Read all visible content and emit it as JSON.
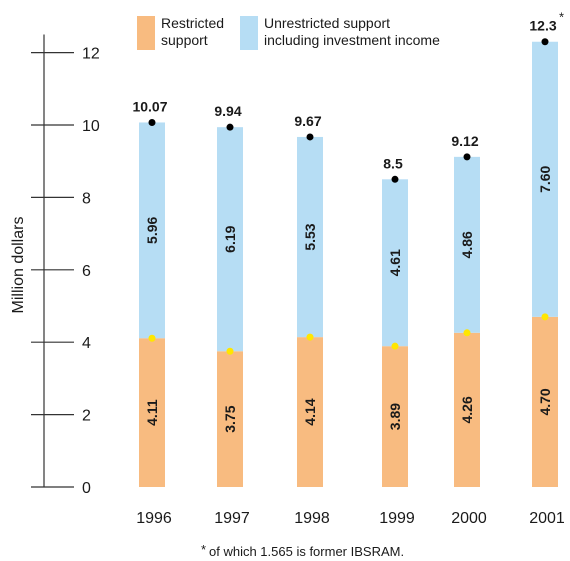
{
  "chart_data": {
    "type": "bar",
    "stacked": true,
    "categories": [
      "1996",
      "1997",
      "1998",
      "1999",
      "2000",
      "2001"
    ],
    "series": [
      {
        "name": "Restricted support",
        "color": "#f8bb80",
        "values": [
          4.11,
          3.75,
          4.14,
          3.89,
          4.26,
          4.7
        ],
        "labels": [
          "4.11",
          "3.75",
          "4.14",
          "3.89",
          "4.26",
          "4.70"
        ]
      },
      {
        "name": "Unrestricted support including investment income",
        "color": "#b6ddf4",
        "values": [
          5.96,
          6.19,
          5.53,
          4.61,
          4.86,
          7.6
        ],
        "labels": [
          "5.96",
          "6.19",
          "5.53",
          "4.61",
          "4.86",
          "7.60"
        ]
      }
    ],
    "totals": [
      10.07,
      9.94,
      9.67,
      8.5,
      9.12,
      12.3
    ],
    "total_labels": [
      "10.07",
      "9.94",
      "9.67",
      "8.5",
      "9.12",
      "12.3"
    ],
    "total_marker": "*",
    "ylabel": "Million dollars",
    "ylim": [
      0,
      12.5
    ],
    "yticks": [
      0,
      2,
      4,
      6,
      8,
      10,
      12
    ],
    "legend": {
      "position": "top",
      "entries": [
        [
          "Restricted",
          "support"
        ],
        [
          "Unrestricted support",
          "including investment income"
        ]
      ]
    },
    "footnote_marker": "*",
    "footnote": "of which 1.565 is former IBSRAM.",
    "total_marker_color": "#000000",
    "restricted_marker_color": "#ffe600",
    "grid": false
  }
}
